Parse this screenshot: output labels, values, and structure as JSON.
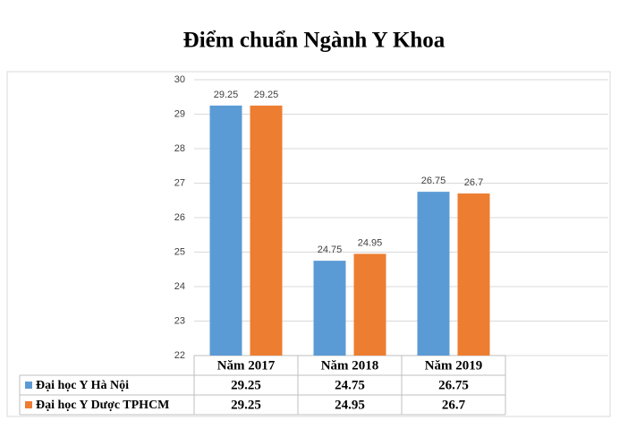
{
  "chart_data": {
    "type": "bar",
    "title": "Điểm chuẩn Ngành Y Khoa",
    "categories": [
      "Năm 2017",
      "Năm 2018",
      "Năm 2019"
    ],
    "series": [
      {
        "name": "Đại học Y Hà Nội",
        "color": "#5b9bd5",
        "values": [
          29.25,
          24.75,
          26.75
        ]
      },
      {
        "name": "Đại học Y Dược TPHCM",
        "color": "#ed7d31",
        "values": [
          29.25,
          24.95,
          26.7
        ]
      }
    ],
    "ylim": [
      22,
      30
    ],
    "yticks": [
      22,
      23,
      24,
      25,
      26,
      27,
      28,
      29,
      30
    ],
    "grid": true,
    "data_labels": true
  }
}
